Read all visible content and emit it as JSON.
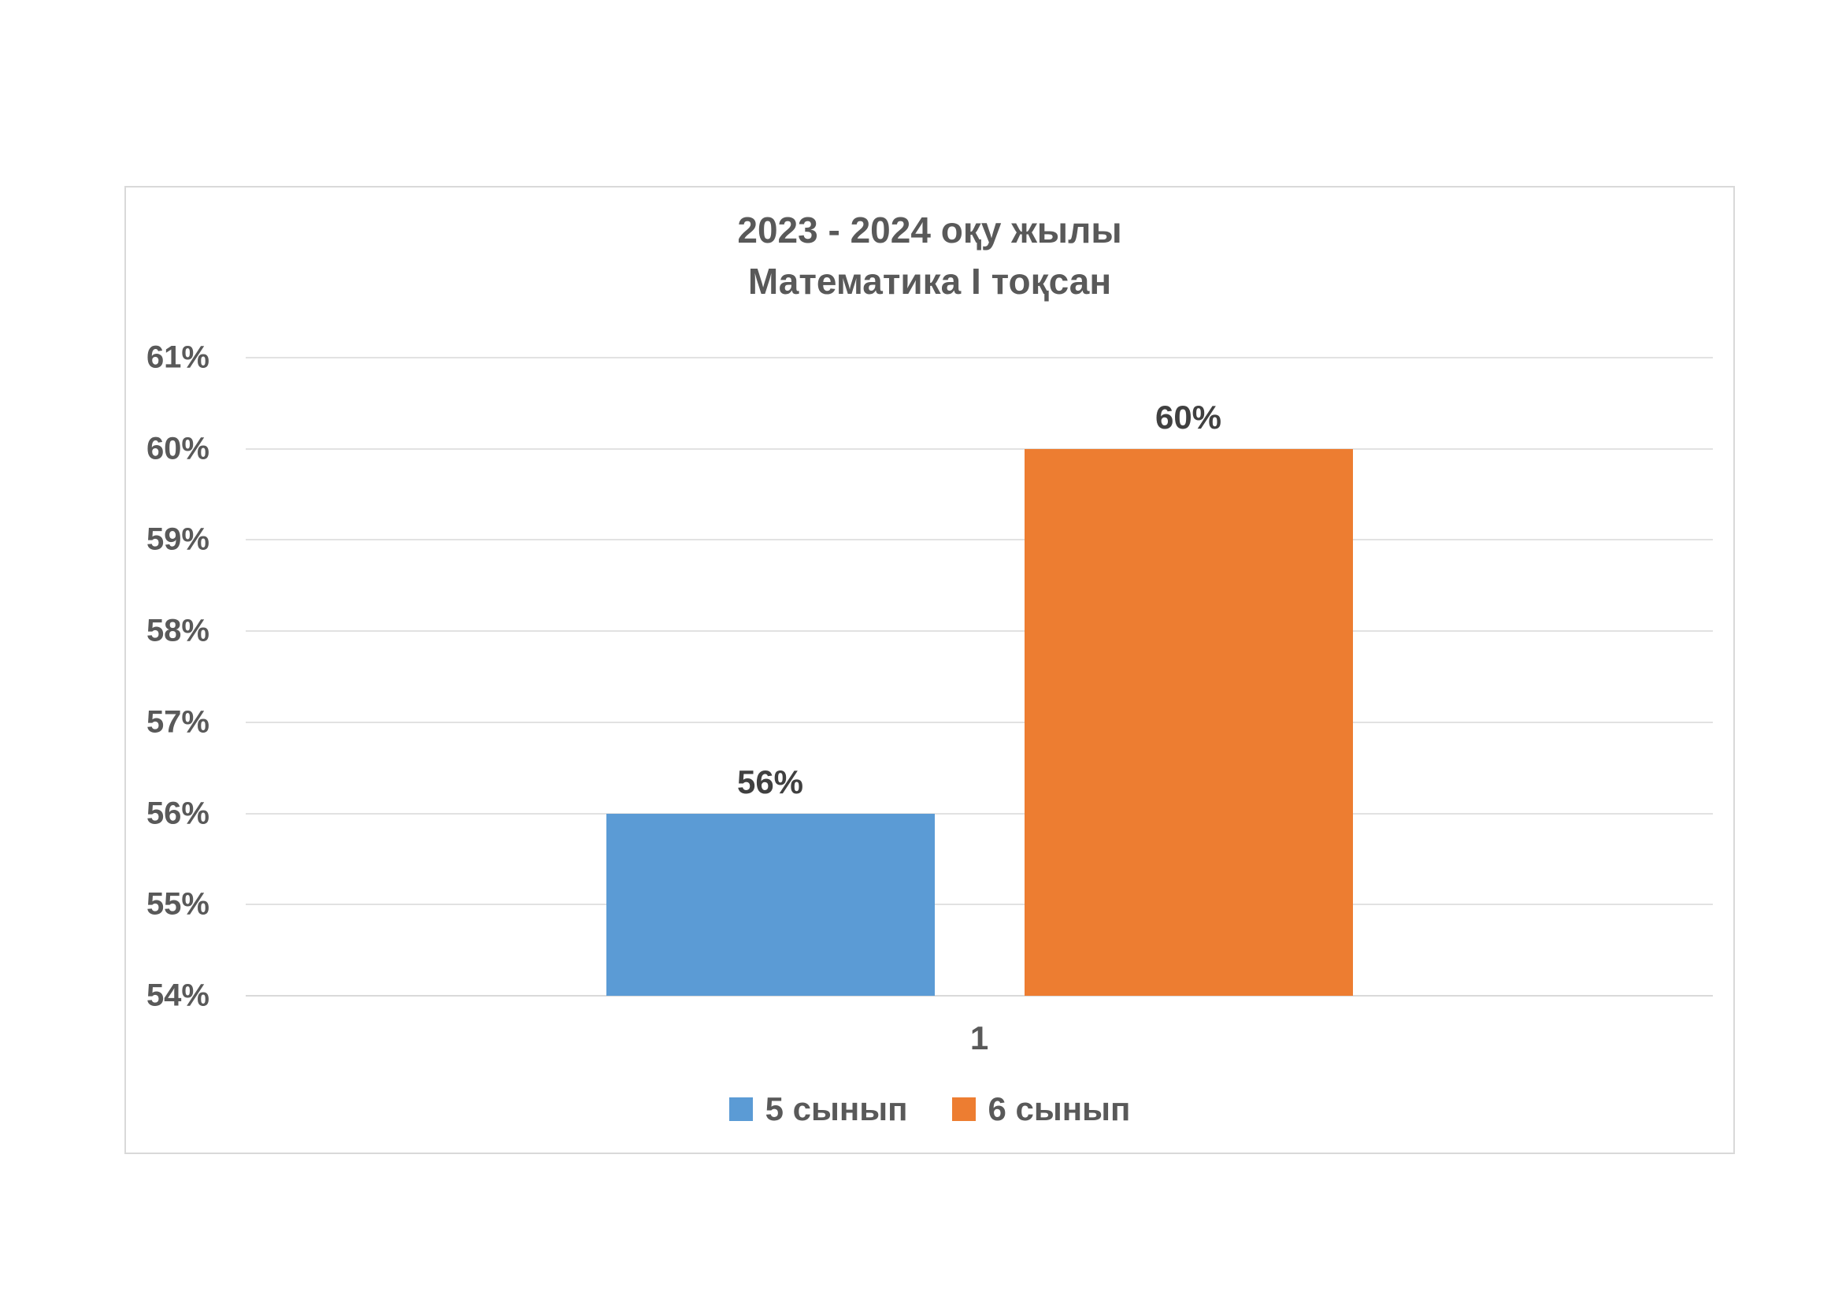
{
  "chart_data": {
    "type": "bar",
    "title_line1": "2023 - 2024 оқу жылы",
    "title_line2": "Математика I тоқсан",
    "xlabel": "",
    "ylabel": "",
    "categories": [
      "1"
    ],
    "series": [
      {
        "name": "5 сынып",
        "values": [
          56
        ],
        "data_label": "56%",
        "color": "#5B9BD5"
      },
      {
        "name": "6 сынып",
        "values": [
          60
        ],
        "data_label": "60%",
        "color": "#ED7D31"
      }
    ],
    "ylim": [
      54,
      61
    ],
    "ytick_labels": [
      "61%",
      "60%",
      "59%",
      "58%",
      "57%",
      "56%",
      "55%",
      "54%"
    ],
    "grid": true,
    "legend_position": "bottom",
    "colors": {
      "axis_text": "#595959",
      "data_label_text": "#404040",
      "title_text": "#595959",
      "gridline": "#E2E2E2",
      "chart_border": "#D9D9D9",
      "background": "#FFFFFF"
    }
  }
}
